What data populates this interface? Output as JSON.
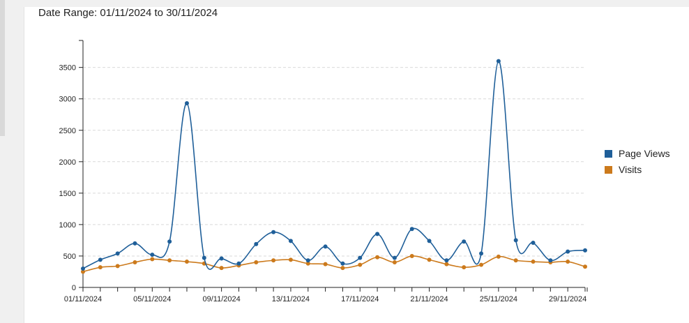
{
  "header": {
    "date_range_label": "Date Range: 01/11/2024 to 30/11/2024"
  },
  "colors": {
    "page_views": "#1f5f99",
    "visits": "#cc7a1c",
    "grid": "#d9d9d9",
    "axis": "#222222"
  },
  "chart_data": {
    "type": "line",
    "title": "",
    "xlabel": "",
    "ylabel": "",
    "ylim": [
      0,
      3800
    ],
    "y_ticks": [
      0,
      500,
      1000,
      1500,
      2000,
      2500,
      3000,
      3500
    ],
    "grid": true,
    "legend_placement": "right",
    "x": [
      "01/11/2024",
      "02/11/2024",
      "03/11/2024",
      "04/11/2024",
      "05/11/2024",
      "06/11/2024",
      "07/11/2024",
      "08/11/2024",
      "09/11/2024",
      "10/11/2024",
      "11/11/2024",
      "12/11/2024",
      "13/11/2024",
      "14/11/2024",
      "15/11/2024",
      "16/11/2024",
      "17/11/2024",
      "18/11/2024",
      "19/11/2024",
      "20/11/2024",
      "21/11/2024",
      "22/11/2024",
      "23/11/2024",
      "24/11/2024",
      "25/11/2024",
      "26/11/2024",
      "27/11/2024",
      "28/11/2024",
      "29/11/2024",
      "30/11/2024"
    ],
    "x_tick_labels": [
      "01/11/2024",
      "05/11/2024",
      "09/11/2024",
      "13/11/2024",
      "17/11/2024",
      "21/11/2024",
      "25/11/2024",
      "29/11/2024"
    ],
    "series": [
      {
        "name": "Page Views",
        "values": [
          300,
          440,
          540,
          700,
          520,
          730,
          2930,
          470,
          460,
          380,
          690,
          880,
          740,
          430,
          650,
          380,
          470,
          850,
          470,
          930,
          740,
          430,
          730,
          540,
          3600,
          750,
          710,
          430,
          570,
          590
        ]
      },
      {
        "name": "Visits",
        "values": [
          250,
          320,
          340,
          400,
          450,
          430,
          410,
          380,
          310,
          350,
          400,
          430,
          440,
          380,
          370,
          310,
          360,
          480,
          400,
          500,
          440,
          370,
          320,
          360,
          490,
          430,
          410,
          400,
          410,
          330
        ]
      }
    ]
  }
}
